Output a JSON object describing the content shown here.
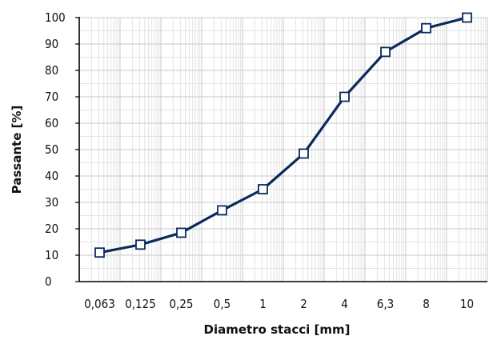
{
  "chart_data": {
    "type": "line",
    "title": "",
    "xlabel": "Diametro stacci [mm]",
    "ylabel": "Passante [%]",
    "categories": [
      "0,063",
      "0,125",
      "0,25",
      "0,5",
      "1",
      "2",
      "4",
      "6,3",
      "8",
      "10"
    ],
    "y_ticks": [
      "0",
      "10",
      "20",
      "30",
      "40",
      "50",
      "60",
      "70",
      "80",
      "90",
      "100"
    ],
    "ylim": [
      0,
      100
    ],
    "grid": true,
    "x_scale": "log",
    "series": [
      {
        "values": [
          11,
          14,
          18.5,
          27,
          35,
          48.5,
          70,
          87,
          96,
          100
        ],
        "line_color": "#0b2a5c",
        "marker": "square"
      }
    ]
  }
}
